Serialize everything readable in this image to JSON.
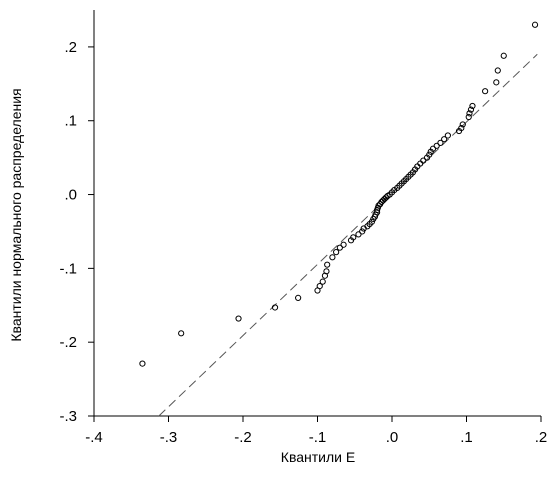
{
  "chart_data": {
    "type": "scatter",
    "xlabel": "Квантили E",
    "ylabel": "Квантили нормального распределения",
    "xlim": [
      -0.4,
      0.2
    ],
    "ylim": [
      -0.3,
      0.25
    ],
    "xticks": [
      {
        "value": -0.4,
        "label": "-.4"
      },
      {
        "value": -0.3,
        "label": "-.3"
      },
      {
        "value": -0.2,
        "label": "-.2"
      },
      {
        "value": -0.1,
        "label": "-.1"
      },
      {
        "value": 0.0,
        "label": ".0"
      },
      {
        "value": 0.1,
        "label": ".1"
      },
      {
        "value": 0.2,
        "label": ".2"
      }
    ],
    "yticks": [
      {
        "value": -0.3,
        "label": "-.3"
      },
      {
        "value": -0.2,
        "label": "-.2"
      },
      {
        "value": -0.1,
        "label": "-.1"
      },
      {
        "value": 0.0,
        "label": ".0"
      },
      {
        "value": 0.1,
        "label": ".1"
      },
      {
        "value": 0.2,
        "label": ".2"
      }
    ],
    "grid": false,
    "reference_line": {
      "style": "dashed",
      "from": [
        -0.313,
        -0.3
      ],
      "to": [
        0.195,
        0.19
      ]
    },
    "points": {
      "x": [
        -0.335,
        -0.283,
        -0.206,
        -0.157,
        -0.126,
        -0.1,
        -0.097,
        -0.093,
        -0.09,
        -0.088,
        -0.087,
        -0.08,
        -0.075,
        -0.07,
        -0.065,
        -0.055,
        -0.052,
        -0.045,
        -0.04,
        -0.038,
        -0.033,
        -0.03,
        -0.027,
        -0.025,
        -0.023,
        -0.022,
        -0.02,
        -0.02,
        -0.019,
        -0.018,
        -0.016,
        -0.014,
        -0.012,
        -0.01,
        -0.008,
        -0.006,
        -0.003,
        0.0,
        0.003,
        0.007,
        0.01,
        0.013,
        0.016,
        0.019,
        0.022,
        0.025,
        0.028,
        0.031,
        0.034,
        0.038,
        0.042,
        0.047,
        0.05,
        0.052,
        0.055,
        0.06,
        0.065,
        0.07,
        0.075,
        0.09,
        0.093,
        0.095,
        0.103,
        0.104,
        0.106,
        0.108,
        0.125,
        0.14,
        0.142,
        0.15,
        0.192
      ],
      "y": [
        -0.229,
        -0.188,
        -0.168,
        -0.153,
        -0.14,
        -0.13,
        -0.124,
        -0.118,
        -0.11,
        -0.104,
        -0.095,
        -0.085,
        -0.078,
        -0.072,
        -0.068,
        -0.062,
        -0.058,
        -0.054,
        -0.05,
        -0.046,
        -0.043,
        -0.04,
        -0.037,
        -0.033,
        -0.03,
        -0.027,
        -0.024,
        -0.021,
        -0.018,
        -0.015,
        -0.013,
        -0.01,
        -0.008,
        -0.006,
        -0.004,
        -0.002,
        0.0,
        0.003,
        0.006,
        0.009,
        0.012,
        0.015,
        0.018,
        0.021,
        0.024,
        0.027,
        0.03,
        0.034,
        0.038,
        0.042,
        0.046,
        0.05,
        0.054,
        0.058,
        0.062,
        0.066,
        0.07,
        0.075,
        0.08,
        0.086,
        0.09,
        0.095,
        0.105,
        0.11,
        0.115,
        0.12,
        0.14,
        0.152,
        0.168,
        0.188,
        0.23
      ]
    }
  }
}
